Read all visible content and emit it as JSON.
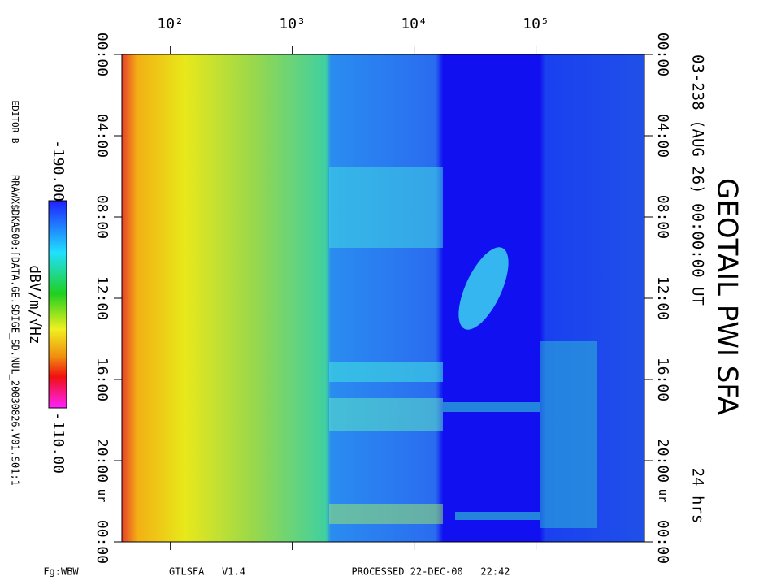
{
  "chart_data": {
    "type": "spectrogram",
    "title": "GEOTAIL PWI SFA",
    "subtitle": "03-238 (AUG 26) 00:00:00 UT",
    "duration": "24 hrs",
    "time_unit": "ur",
    "xlim": [
      40,
      776000
    ],
    "log_x": true,
    "xticks": [
      {
        "value": 100,
        "label": "10²"
      },
      {
        "value": 1000,
        "label": "10³"
      },
      {
        "value": 10000,
        "label": "10⁴"
      },
      {
        "value": 100000,
        "label": "10⁵"
      }
    ],
    "ylim": [
      0,
      24
    ],
    "yticks": [
      {
        "value": 0,
        "label": "00:00"
      },
      {
        "value": 4,
        "label": "04:00"
      },
      {
        "value": 8,
        "label": "08:00"
      },
      {
        "value": 12,
        "label": "12:00"
      },
      {
        "value": 16,
        "label": "16:00"
      },
      {
        "value": 20,
        "label": "20:00"
      },
      {
        "value": 24,
        "label": "00:00"
      }
    ],
    "colorbar": {
      "label": "dBV/m/√Hz",
      "ticks": [
        {
          "value": -190,
          "label": "-190.00"
        },
        {
          "value": -110,
          "label": "-110.00"
        }
      ]
    },
    "editor": "EDITOR B",
    "source": "RRAWX$DKA500:[DATA.GE.SDIGE_SD.NUL_20030826.V01.S01;1",
    "footer": [
      "Fg:WBW",
      "GTLSFA   V1.4",
      "PROCESSED 22-DEC-00   22:42"
    ]
  }
}
